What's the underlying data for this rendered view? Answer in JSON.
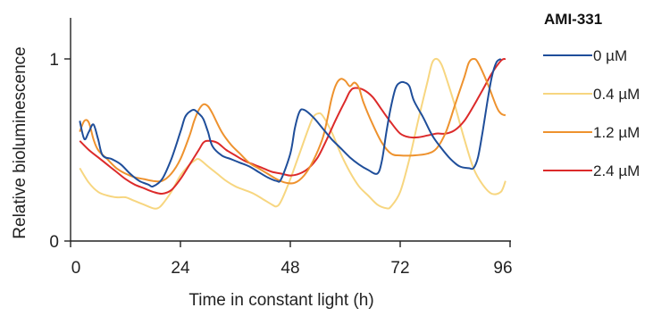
{
  "chart_data": {
    "type": "line",
    "title": "",
    "xlabel": "Time in constant light (h)",
    "ylabel": "Relative bioluminescence",
    "xlim": [
      0,
      96
    ],
    "ylim": [
      0,
      1.2
    ],
    "x_ticks": [
      0,
      24,
      48,
      72,
      96
    ],
    "y_ticks": [
      0,
      1
    ],
    "legend_title": "AMI-331",
    "legend_position": "right",
    "grid": false,
    "series": [
      {
        "name": "0 µM",
        "color": "#1f4e9a",
        "points": [
          [
            2,
            0.66
          ],
          [
            3,
            0.56
          ],
          [
            4,
            0.6
          ],
          [
            5,
            0.64
          ],
          [
            6,
            0.56
          ],
          [
            7,
            0.47
          ],
          [
            9,
            0.45
          ],
          [
            11,
            0.42
          ],
          [
            13,
            0.37
          ],
          [
            15,
            0.33
          ],
          [
            17,
            0.31
          ],
          [
            18,
            0.3
          ],
          [
            20,
            0.34
          ],
          [
            22,
            0.45
          ],
          [
            24,
            0.6
          ],
          [
            25,
            0.68
          ],
          [
            26,
            0.71
          ],
          [
            27,
            0.72
          ],
          [
            28,
            0.7
          ],
          [
            29,
            0.67
          ],
          [
            30,
            0.6
          ],
          [
            31,
            0.52
          ],
          [
            33,
            0.47
          ],
          [
            35,
            0.45
          ],
          [
            37,
            0.43
          ],
          [
            39,
            0.41
          ],
          [
            41,
            0.38
          ],
          [
            43,
            0.35
          ],
          [
            45,
            0.33
          ],
          [
            46,
            0.34
          ],
          [
            48,
            0.48
          ],
          [
            49,
            0.62
          ],
          [
            50,
            0.71
          ],
          [
            51,
            0.72
          ],
          [
            53,
            0.68
          ],
          [
            55,
            0.62
          ],
          [
            57,
            0.56
          ],
          [
            59,
            0.51
          ],
          [
            61,
            0.46
          ],
          [
            63,
            0.42
          ],
          [
            65,
            0.39
          ],
          [
            67,
            0.37
          ],
          [
            68,
            0.44
          ],
          [
            69,
            0.6
          ],
          [
            70,
            0.74
          ],
          [
            71,
            0.84
          ],
          [
            72,
            0.87
          ],
          [
            73,
            0.87
          ],
          [
            74,
            0.85
          ],
          [
            75,
            0.77
          ],
          [
            77,
            0.68
          ],
          [
            79,
            0.58
          ],
          [
            81,
            0.51
          ],
          [
            83,
            0.45
          ],
          [
            85,
            0.41
          ],
          [
            87,
            0.4
          ],
          [
            88,
            0.4
          ],
          [
            89,
            0.46
          ],
          [
            90,
            0.6
          ],
          [
            91,
            0.76
          ],
          [
            92,
            0.9
          ],
          [
            93,
            0.98
          ],
          [
            94,
            1.0
          ]
        ]
      },
      {
        "name": "0.4 µM",
        "color": "#f7d680",
        "points": [
          [
            2,
            0.4
          ],
          [
            4,
            0.32
          ],
          [
            6,
            0.27
          ],
          [
            8,
            0.25
          ],
          [
            10,
            0.24
          ],
          [
            12,
            0.24
          ],
          [
            14,
            0.22
          ],
          [
            16,
            0.2
          ],
          [
            18,
            0.18
          ],
          [
            19,
            0.18
          ],
          [
            20,
            0.2
          ],
          [
            22,
            0.27
          ],
          [
            24,
            0.36
          ],
          [
            26,
            0.42
          ],
          [
            27,
            0.44
          ],
          [
            28,
            0.45
          ],
          [
            30,
            0.41
          ],
          [
            32,
            0.37
          ],
          [
            34,
            0.33
          ],
          [
            36,
            0.3
          ],
          [
            38,
            0.28
          ],
          [
            40,
            0.26
          ],
          [
            42,
            0.23
          ],
          [
            44,
            0.2
          ],
          [
            45,
            0.19
          ],
          [
            46,
            0.22
          ],
          [
            48,
            0.34
          ],
          [
            50,
            0.48
          ],
          [
            52,
            0.62
          ],
          [
            53,
            0.68
          ],
          [
            54,
            0.7
          ],
          [
            55,
            0.69
          ],
          [
            57,
            0.6
          ],
          [
            59,
            0.48
          ],
          [
            61,
            0.38
          ],
          [
            63,
            0.3
          ],
          [
            65,
            0.25
          ],
          [
            67,
            0.2
          ],
          [
            69,
            0.18
          ],
          [
            70,
            0.19
          ],
          [
            72,
            0.27
          ],
          [
            74,
            0.45
          ],
          [
            76,
            0.67
          ],
          [
            78,
            0.88
          ],
          [
            79,
            0.98
          ],
          [
            80,
            1.0
          ],
          [
            81,
            0.97
          ],
          [
            82,
            0.9
          ],
          [
            84,
            0.74
          ],
          [
            86,
            0.56
          ],
          [
            88,
            0.4
          ],
          [
            90,
            0.31
          ],
          [
            92,
            0.26
          ],
          [
            94,
            0.27
          ],
          [
            95,
            0.33
          ]
        ]
      },
      {
        "name": "1.2 µM",
        "color": "#ee922e",
        "points": [
          [
            2,
            0.6
          ],
          [
            3,
            0.66
          ],
          [
            4,
            0.65
          ],
          [
            5,
            0.56
          ],
          [
            6,
            0.5
          ],
          [
            8,
            0.45
          ],
          [
            10,
            0.4
          ],
          [
            12,
            0.37
          ],
          [
            14,
            0.35
          ],
          [
            16,
            0.34
          ],
          [
            18,
            0.33
          ],
          [
            20,
            0.33
          ],
          [
            22,
            0.37
          ],
          [
            24,
            0.45
          ],
          [
            26,
            0.58
          ],
          [
            27,
            0.66
          ],
          [
            28,
            0.72
          ],
          [
            29,
            0.75
          ],
          [
            30,
            0.74
          ],
          [
            31,
            0.7
          ],
          [
            33,
            0.6
          ],
          [
            35,
            0.53
          ],
          [
            37,
            0.48
          ],
          [
            39,
            0.43
          ],
          [
            41,
            0.4
          ],
          [
            43,
            0.37
          ],
          [
            45,
            0.34
          ],
          [
            47,
            0.32
          ],
          [
            49,
            0.32
          ],
          [
            51,
            0.36
          ],
          [
            53,
            0.44
          ],
          [
            55,
            0.56
          ],
          [
            56,
            0.66
          ],
          [
            57,
            0.78
          ],
          [
            58,
            0.86
          ],
          [
            59,
            0.89
          ],
          [
            60,
            0.88
          ],
          [
            61,
            0.85
          ],
          [
            62,
            0.87
          ],
          [
            63,
            0.84
          ],
          [
            64,
            0.76
          ],
          [
            66,
            0.64
          ],
          [
            68,
            0.54
          ],
          [
            70,
            0.48
          ],
          [
            72,
            0.47
          ],
          [
            75,
            0.47
          ],
          [
            78,
            0.48
          ],
          [
            80,
            0.51
          ],
          [
            82,
            0.6
          ],
          [
            84,
            0.75
          ],
          [
            86,
            0.9
          ],
          [
            87,
            0.98
          ],
          [
            88,
            1.0
          ],
          [
            89,
            0.98
          ],
          [
            91,
            0.87
          ],
          [
            93,
            0.74
          ],
          [
            94,
            0.7
          ],
          [
            95,
            0.69
          ]
        ]
      },
      {
        "name": "2.4 µM",
        "color": "#dc2a2a",
        "points": [
          [
            2,
            0.55
          ],
          [
            4,
            0.5
          ],
          [
            6,
            0.46
          ],
          [
            8,
            0.42
          ],
          [
            10,
            0.38
          ],
          [
            12,
            0.34
          ],
          [
            14,
            0.31
          ],
          [
            16,
            0.29
          ],
          [
            18,
            0.27
          ],
          [
            20,
            0.26
          ],
          [
            22,
            0.28
          ],
          [
            24,
            0.34
          ],
          [
            26,
            0.42
          ],
          [
            28,
            0.5
          ],
          [
            29,
            0.54
          ],
          [
            30,
            0.55
          ],
          [
            32,
            0.54
          ],
          [
            34,
            0.5
          ],
          [
            36,
            0.47
          ],
          [
            38,
            0.44
          ],
          [
            40,
            0.42
          ],
          [
            42,
            0.4
          ],
          [
            44,
            0.38
          ],
          [
            46,
            0.37
          ],
          [
            48,
            0.36
          ],
          [
            50,
            0.37
          ],
          [
            52,
            0.4
          ],
          [
            54,
            0.46
          ],
          [
            56,
            0.56
          ],
          [
            58,
            0.67
          ],
          [
            60,
            0.77
          ],
          [
            61,
            0.82
          ],
          [
            62,
            0.84
          ],
          [
            64,
            0.83
          ],
          [
            66,
            0.79
          ],
          [
            68,
            0.72
          ],
          [
            70,
            0.65
          ],
          [
            72,
            0.59
          ],
          [
            74,
            0.57
          ],
          [
            76,
            0.57
          ],
          [
            78,
            0.58
          ],
          [
            80,
            0.59
          ],
          [
            82,
            0.59
          ],
          [
            84,
            0.61
          ],
          [
            86,
            0.66
          ],
          [
            88,
            0.74
          ],
          [
            90,
            0.83
          ],
          [
            92,
            0.92
          ],
          [
            94,
            0.99
          ],
          [
            95,
            1.0
          ]
        ]
      }
    ]
  }
}
